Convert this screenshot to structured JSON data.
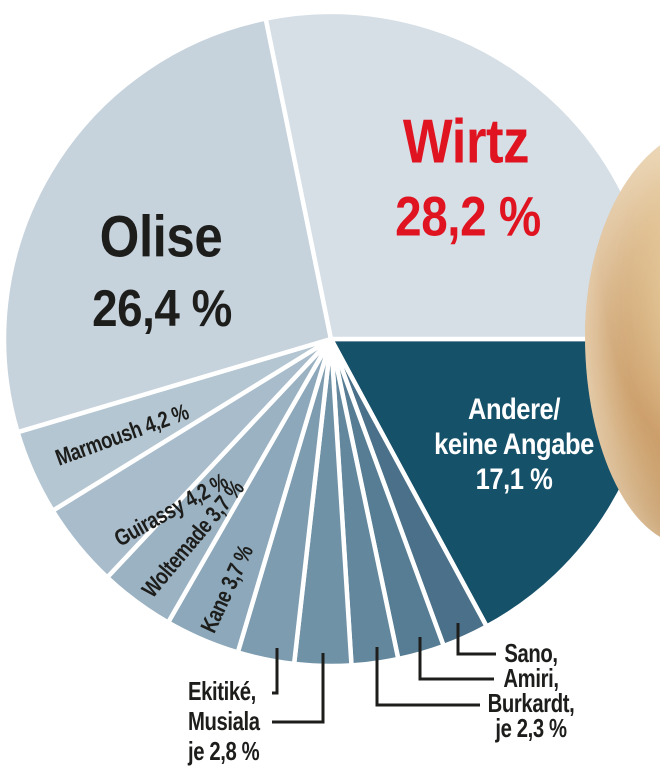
{
  "chart_data": {
    "type": "pie",
    "title": "",
    "unit": "%",
    "legend": "none",
    "separator_color": "#ffffff",
    "start_angle_deg": 0,
    "direction": "clockwise from east",
    "slices": [
      {
        "label": "Andere/keine Angabe",
        "value": 17.1,
        "display": "17,1 %",
        "color": "#16516a"
      },
      {
        "label": "Sano",
        "value": 2.3,
        "display": "2,3 %",
        "color": "#4a7189"
      },
      {
        "label": "Amiri",
        "value": 2.3,
        "display": "2,3 %",
        "color": "#567d93"
      },
      {
        "label": "Burkardt",
        "value": 2.3,
        "display": "2,3 %",
        "color": "#63879d"
      },
      {
        "label": "Musiala",
        "value": 2.8,
        "display": "2,8 %",
        "color": "#7092a7"
      },
      {
        "label": "Ekitiké",
        "value": 2.8,
        "display": "2,8 %",
        "color": "#7d9cb0"
      },
      {
        "label": "Kane",
        "value": 3.7,
        "display": "3,7 %",
        "color": "#8ca8ba"
      },
      {
        "label": "Woltemade",
        "value": 3.7,
        "display": "3,7 %",
        "color": "#9ab2c2"
      },
      {
        "label": "Guirassy",
        "value": 4.2,
        "display": "4,2 %",
        "color": "#a8bccb"
      },
      {
        "label": "Marmoush",
        "value": 4.2,
        "display": "4,2 %",
        "color": "#b4c6d2"
      },
      {
        "label": "Olise",
        "value": 26.4,
        "display": "26,4 %",
        "color": "#c6d2dc"
      },
      {
        "label": "Wirtz",
        "value": 28.2,
        "display": "28,2 %",
        "color": "#d6dfe6"
      }
    ]
  },
  "labels": {
    "wirtz": {
      "name": "Wirtz",
      "value": "28,2 %",
      "color": "#e01321"
    },
    "olise": {
      "name": "Olise",
      "value": "26,4 %"
    },
    "andere": {
      "line1": "Andere/",
      "line2": "keine Angabe",
      "line3": "17,1 %"
    },
    "marmoush": "Marmoush 4,2 %",
    "guirassy": "Guirassy 4,2 %",
    "woltemade": "Woltemade 3,7 %",
    "kane": "Kane 3,7 %"
  },
  "callouts": {
    "left": {
      "line1": "Ekitiké,",
      "line2": "Musiala",
      "line3": "je 2,8 %"
    },
    "right": {
      "line1": "Sano,",
      "line2": "Amiri,",
      "line3": "Burkardt,",
      "line4": "je 2,3 %"
    }
  },
  "decor": {
    "photo_fragment": "skin-tone photo cutout overlapping upper right edge of pie"
  }
}
